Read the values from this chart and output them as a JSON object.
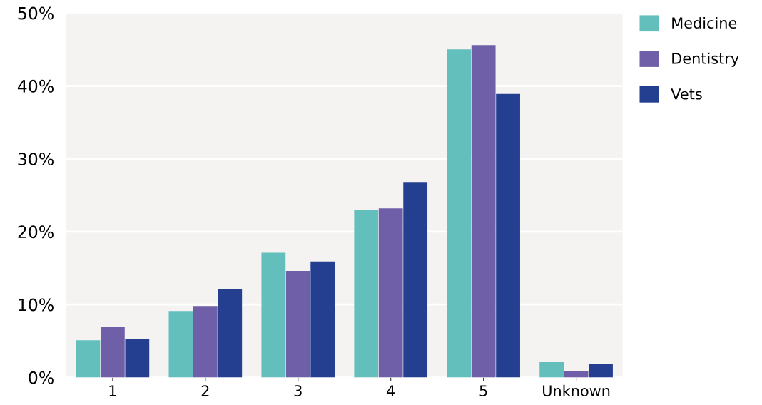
{
  "chart_data": {
    "type": "bar",
    "categories": [
      "1",
      "2",
      "3",
      "4",
      "5",
      "Unknown"
    ],
    "series": [
      {
        "name": "Medicine",
        "color": "#63bfbb",
        "values": [
          5.1,
          9.1,
          17.1,
          23.0,
          45.0,
          2.1
        ]
      },
      {
        "name": "Dentistry",
        "color": "#6f5fa8",
        "values": [
          6.9,
          9.8,
          14.6,
          23.2,
          45.6,
          0.9
        ]
      },
      {
        "name": "Vets",
        "color": "#243e90",
        "values": [
          5.3,
          12.1,
          15.9,
          26.8,
          38.9,
          1.8
        ]
      }
    ],
    "ylim": [
      0,
      50
    ],
    "yticks": [
      {
        "value": 0,
        "label": "0%"
      },
      {
        "value": 10,
        "label": "10%"
      },
      {
        "value": 20,
        "label": "20%"
      },
      {
        "value": 30,
        "label": "30%"
      },
      {
        "value": 40,
        "label": "40%"
      },
      {
        "value": 50,
        "label": "50%"
      }
    ],
    "grid": "y",
    "legend": "top right"
  }
}
